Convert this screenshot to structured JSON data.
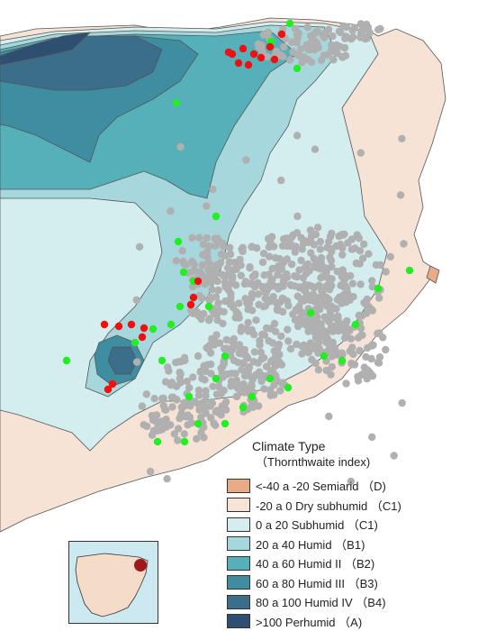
{
  "legend": {
    "title": "Climate Type",
    "subtitle": "（Thornthwaite index)",
    "items": [
      {
        "label": "<-40 a -20 Semiarid （D)",
        "color": "#e8ab85"
      },
      {
        "label": "-20 a 0 Dry subhumid （C1)",
        "color": "#f7e3d6"
      },
      {
        "label": "0 a 20 Subhumid （C1)",
        "color": "#d4edef"
      },
      {
        "label": "20 a 40 Humid （B1)",
        "color": "#a5d7dc"
      },
      {
        "label": "40 a 60 Humid II （B2)",
        "color": "#55b0ba"
      },
      {
        "label": "60 a 80 Humid III （B3)",
        "color": "#3f8da0"
      },
      {
        "label": "80 a 100 Humid IV （B4)",
        "color": "#3a6e8a"
      },
      {
        "label": ">100 Perhumid （A)",
        "color": "#2e4e72"
      }
    ]
  },
  "colors": {
    "sea": "#ffffff",
    "grey_points": "#b0b0b0",
    "green_points": "#22ee22",
    "red_points": "#ee1111",
    "inset_land": "#f4dcc9",
    "inset_water": "#cce8f0",
    "inset_highlight": "#a01818"
  }
}
